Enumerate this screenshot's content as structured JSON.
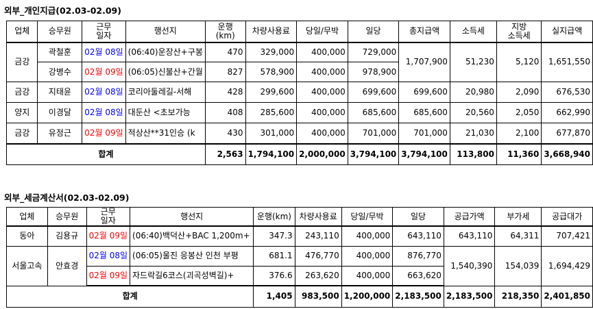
{
  "section1": {
    "title": "외부_개인지급(02.03-02.09)",
    "headers": [
      "업체",
      "승무원",
      "근무\n일자",
      "행선지",
      "운행\n(km)",
      "차량사용료",
      "당일/무박",
      "일당",
      "총지급액",
      "소득세",
      "지방\n소득세",
      "실지급액"
    ],
    "rows": [
      {
        "company": "금강",
        "crew": "곽철훈",
        "date": "02월 08일",
        "date_color": "blue",
        "dest": "(06:40)운장산+구봉",
        "km": "470",
        "vehicle": "329,000",
        "daily": "400,000",
        "allowance": "729,000"
      },
      {
        "company": "",
        "crew": "강병수",
        "date": "02월 09일",
        "date_color": "red",
        "dest": "(06:05)신불산+간월",
        "km": "827",
        "vehicle": "578,900",
        "daily": "400,000",
        "allowance": "978,900"
      },
      {
        "company": "금강",
        "crew": "지태윤",
        "date": "02월 08일",
        "date_color": "blue",
        "dest": "코리아둘레길-서해",
        "km": "428",
        "vehicle": "299,600",
        "daily": "400,000",
        "allowance": "699,600",
        "total": "699,600",
        "income_tax": "20,980",
        "local_tax": "2,090",
        "net": "676,530"
      },
      {
        "company": "양지",
        "crew": "이경달",
        "date": "02월 08일",
        "date_color": "blue",
        "dest": "대둔산 <초보가능",
        "km": "408",
        "vehicle": "285,600",
        "daily": "400,000",
        "allowance": "685,600",
        "total": "685,600",
        "income_tax": "20,560",
        "local_tax": "2,050",
        "net": "662,990"
      },
      {
        "company": "금강",
        "crew": "유정근",
        "date": "02월 09일",
        "date_color": "red",
        "dest": "적상산**31인승 (k",
        "km": "430",
        "vehicle": "301,000",
        "daily": "400,000",
        "allowance": "701,000",
        "total": "701,000",
        "income_tax": "21,030",
        "local_tax": "2,100",
        "net": "677,870"
      }
    ],
    "merged_group": {
      "company": "금강",
      "total": "1,707,900",
      "income_tax": "51,230",
      "local_tax": "5,120",
      "net": "1,651,550"
    },
    "sum": {
      "label": "합계",
      "km": "2,563",
      "vehicle": "1,794,100",
      "daily": "2,000,000",
      "allowance": "3,794,100",
      "total": "3,794,100",
      "income_tax": "113,800",
      "local_tax": "11,360",
      "net": "3,668,940"
    }
  },
  "section2": {
    "title": "외부_세금계산서(02.03-02.09)",
    "headers": [
      "업체",
      "승무원",
      "근무\n일자",
      "행선지",
      "운행(km)",
      "차량사용료",
      "당일/무박",
      "일당",
      "공급가액",
      "부가세",
      "공급대가"
    ],
    "rows": [
      {
        "company": "동아",
        "crew": "김용규",
        "date": "02월 09일",
        "date_color": "red",
        "dest": "(06:40)백덕산+BAC 1,200m+",
        "km": "347.3",
        "vehicle": "243,110",
        "daily": "400,000",
        "allowance": "643,110",
        "supply": "643,110",
        "vat": "64,311",
        "price": "707,421"
      },
      {
        "company": "서울고속",
        "crew": "안효경",
        "date": "02월 08일",
        "date_color": "blue",
        "dest": "(06:05)울진 응봉산 인천 부평",
        "km": "681.1",
        "vehicle": "476,770",
        "daily": "400,000",
        "allowance": "876,770"
      },
      {
        "company": "",
        "crew": "",
        "date": "02월 09일",
        "date_color": "red",
        "dest": "자드락길6코스(괴곡성벽길)+",
        "km": "376.6",
        "vehicle": "263,620",
        "daily": "400,000",
        "allowance": "663,620"
      }
    ],
    "merged_group": {
      "supply": "1,540,390",
      "vat": "154,039",
      "price": "1,694,429"
    },
    "sum": {
      "label": "합계",
      "km": "1,405",
      "vehicle": "983,500",
      "daily": "1,200,000",
      "allowance": "2,183,500",
      "supply": "2,183,500",
      "vat": "218,350",
      "price": "2,401,850"
    }
  }
}
